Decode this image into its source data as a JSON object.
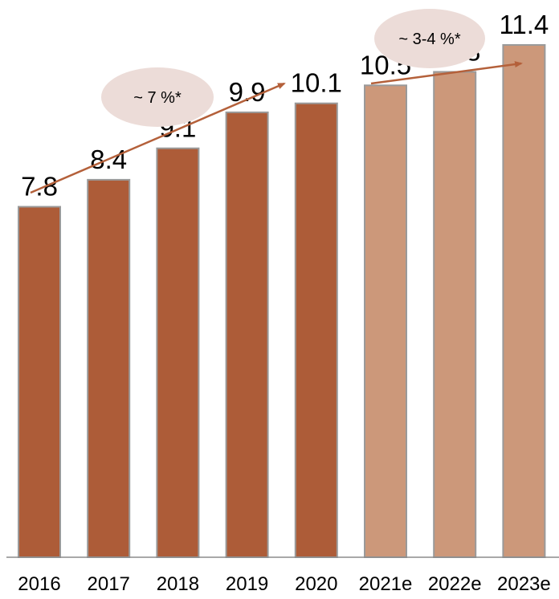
{
  "chart_data": {
    "type": "bar",
    "categories": [
      "2016",
      "2017",
      "2018",
      "2019",
      "2020",
      "2021e",
      "2022e",
      "2023e"
    ],
    "values": [
      7.8,
      8.4,
      9.1,
      9.9,
      10.1,
      10.5,
      10.8,
      11.4
    ],
    "value_labels": [
      "7.8",
      "8.4",
      "9.1",
      "9.9",
      "10.1",
      "10.5",
      "10.8",
      "11.4"
    ],
    "estimated": [
      false,
      false,
      false,
      false,
      false,
      true,
      true,
      true
    ],
    "ylim": [
      0,
      12.4
    ],
    "grid": false,
    "legend": "none",
    "colors": {
      "actual": "#ad5c38",
      "estimate": "#cc987a",
      "bar_border": "#9a9a9a",
      "trend_arrow": "#b4603a",
      "annotation_bubble": "#ecdcd8",
      "axis": "#8c8c8c"
    },
    "annotations": [
      {
        "text": "~ 7 %*",
        "from_category": "2016",
        "to_category": "2020"
      },
      {
        "text": "~ 3-4 %*",
        "from_category": "2021e",
        "to_category": "2023e"
      }
    ]
  }
}
